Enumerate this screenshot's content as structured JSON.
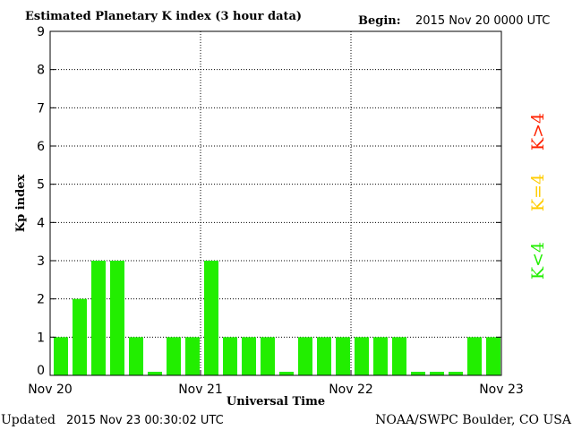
{
  "header": {
    "title": "Estimated Planetary K index (3 hour data)",
    "begin_label": "Begin:",
    "begin_value": "2015 Nov 20 0000 UTC"
  },
  "footer": {
    "updated_label": "Updated",
    "updated_value": "2015 Nov 23 00:30:02 UTC",
    "credit": "NOAA/SWPC Boulder, CO USA"
  },
  "legend": {
    "high": {
      "label": "K>4",
      "color": "#ff2200"
    },
    "mid": {
      "label": "K=4",
      "color": "#ffcc00"
    },
    "low": {
      "label": "K<4",
      "color": "#22ee00"
    }
  },
  "chart_data": {
    "type": "bar",
    "title": "Estimated Planetary K index (3 hour data)",
    "xlabel": "Universal Time",
    "ylabel": "Kp index",
    "ylim": [
      0,
      9
    ],
    "yticks": [
      "0",
      "1",
      "2",
      "3",
      "4",
      "5",
      "6",
      "7",
      "8",
      "9"
    ],
    "xticks": [
      "Nov 20",
      "Nov 21",
      "Nov 22",
      "Nov 23"
    ],
    "grid": true,
    "bar_color": "#22ee00",
    "values": [
      1,
      2,
      3,
      3,
      1,
      0,
      1,
      1,
      3,
      1,
      1,
      1,
      0,
      1,
      1,
      1,
      1,
      1,
      1,
      0,
      0,
      0,
      1,
      1
    ]
  }
}
